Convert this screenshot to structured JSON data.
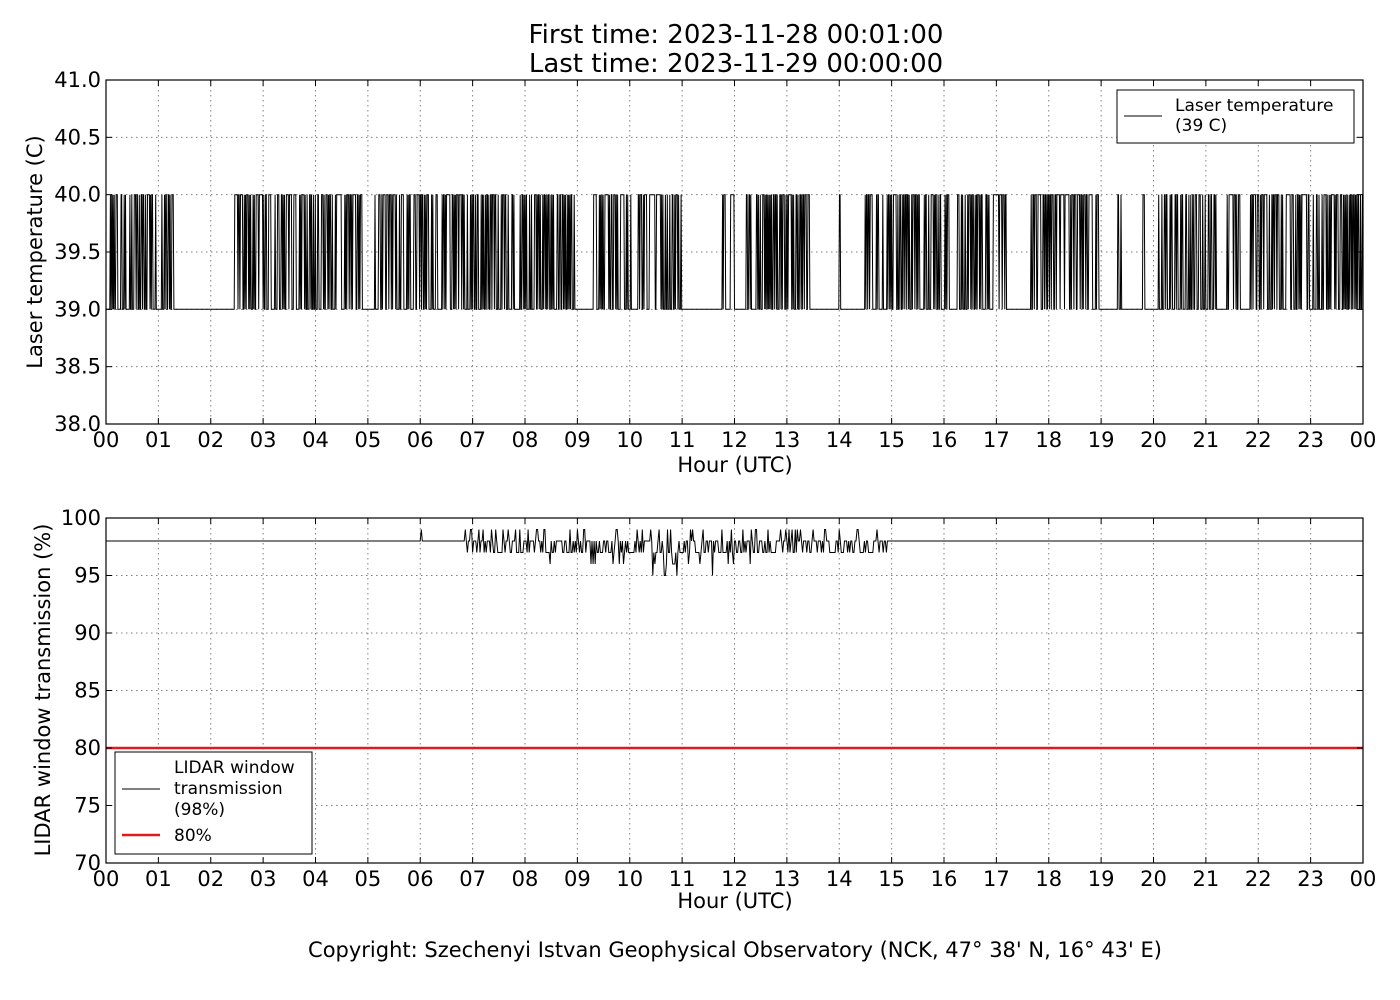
{
  "header": {
    "title_line1": "First time: 2023-11-28 00:01:00",
    "title_line2": "Last time: 2023-11-29 00:00:00"
  },
  "footer": {
    "copyright": "Copyright: Szechenyi Istvan Geophysical Observatory (NCK, 47° 38' N, 16° 43' E)"
  },
  "colors": {
    "series_line": "#000000",
    "threshold_line": "#e31a1c",
    "grid": "#808080"
  },
  "chart_data": [
    {
      "type": "line",
      "title": "",
      "xlabel": "Hour (UTC)",
      "ylabel": "Laser temperature (C)",
      "xlim": [
        0,
        24
      ],
      "ylim": [
        38.0,
        41.0
      ],
      "xticks": [
        0,
        1,
        2,
        3,
        4,
        5,
        6,
        7,
        8,
        9,
        10,
        11,
        12,
        13,
        14,
        15,
        16,
        17,
        18,
        19,
        20,
        21,
        22,
        23,
        24
      ],
      "xtick_labels": [
        "00",
        "01",
        "02",
        "03",
        "04",
        "05",
        "06",
        "07",
        "08",
        "09",
        "10",
        "11",
        "12",
        "13",
        "14",
        "15",
        "16",
        "17",
        "18",
        "19",
        "20",
        "21",
        "22",
        "23",
        "00"
      ],
      "yticks": [
        38.0,
        38.5,
        39.0,
        39.5,
        40.0,
        40.5,
        41.0
      ],
      "ytick_labels": [
        "38.0",
        "38.5",
        "39.0",
        "39.5",
        "40.0",
        "40.5",
        "41.0"
      ],
      "grid": true,
      "legend_position": "top-right",
      "series": [
        {
          "name": "Laser temperature\n(39 C)",
          "legend_lines": [
            "Laser temperature",
            "(39 C)"
          ],
          "color": "#000000",
          "baseline": 39.0,
          "high_value": 40.0,
          "toggle_windows_hours": [
            [
              0.0,
              0.95
            ],
            [
              1.05,
              1.3
            ],
            [
              2.45,
              4.9
            ],
            [
              5.0,
              7.8
            ],
            [
              7.9,
              8.95
            ],
            [
              9.3,
              10.05
            ],
            [
              10.15,
              11.0
            ],
            [
              11.75,
              12.0
            ],
            [
              12.2,
              13.45
            ],
            [
              14.0,
              14.02
            ],
            [
              14.45,
              16.1
            ],
            [
              16.25,
              17.2
            ],
            [
              17.65,
              18.95
            ],
            [
              19.3,
              19.4
            ],
            [
              19.8,
              19.85
            ],
            [
              20.1,
              21.2
            ],
            [
              21.4,
              21.65
            ],
            [
              21.85,
              24.0
            ]
          ],
          "note": "Values alternate between 39.0 and 40.0 inside the toggle windows; constant 39.0 elsewhere"
        }
      ]
    },
    {
      "type": "line",
      "title": "",
      "xlabel": "Hour (UTC)",
      "ylabel": "LIDAR window transmission (%)",
      "xlim": [
        0,
        24
      ],
      "ylim": [
        70,
        100
      ],
      "xticks": [
        0,
        1,
        2,
        3,
        4,
        5,
        6,
        7,
        8,
        9,
        10,
        11,
        12,
        13,
        14,
        15,
        16,
        17,
        18,
        19,
        20,
        21,
        22,
        23,
        24
      ],
      "xtick_labels": [
        "00",
        "01",
        "02",
        "03",
        "04",
        "05",
        "06",
        "07",
        "08",
        "09",
        "10",
        "11",
        "12",
        "13",
        "14",
        "15",
        "16",
        "17",
        "18",
        "19",
        "20",
        "21",
        "22",
        "23",
        "00"
      ],
      "yticks": [
        70,
        75,
        80,
        85,
        90,
        95,
        100
      ],
      "ytick_labels": [
        "70",
        "75",
        "80",
        "85",
        "90",
        "95",
        "100"
      ],
      "grid": true,
      "legend_position": "bottom-left",
      "series": [
        {
          "name": "LIDAR window\ntransmission\n(98%)",
          "legend_lines": [
            "LIDAR window",
            "transmission",
            "(98%)"
          ],
          "color": "#000000",
          "baseline": 98,
          "noisy_window_hours": [
            6.0,
            14.9
          ],
          "noise_range": [
            95,
            99
          ]
        },
        {
          "name": "80%",
          "legend_lines": [
            "80%"
          ],
          "color": "#e31a1c",
          "constant": 80
        }
      ]
    }
  ]
}
